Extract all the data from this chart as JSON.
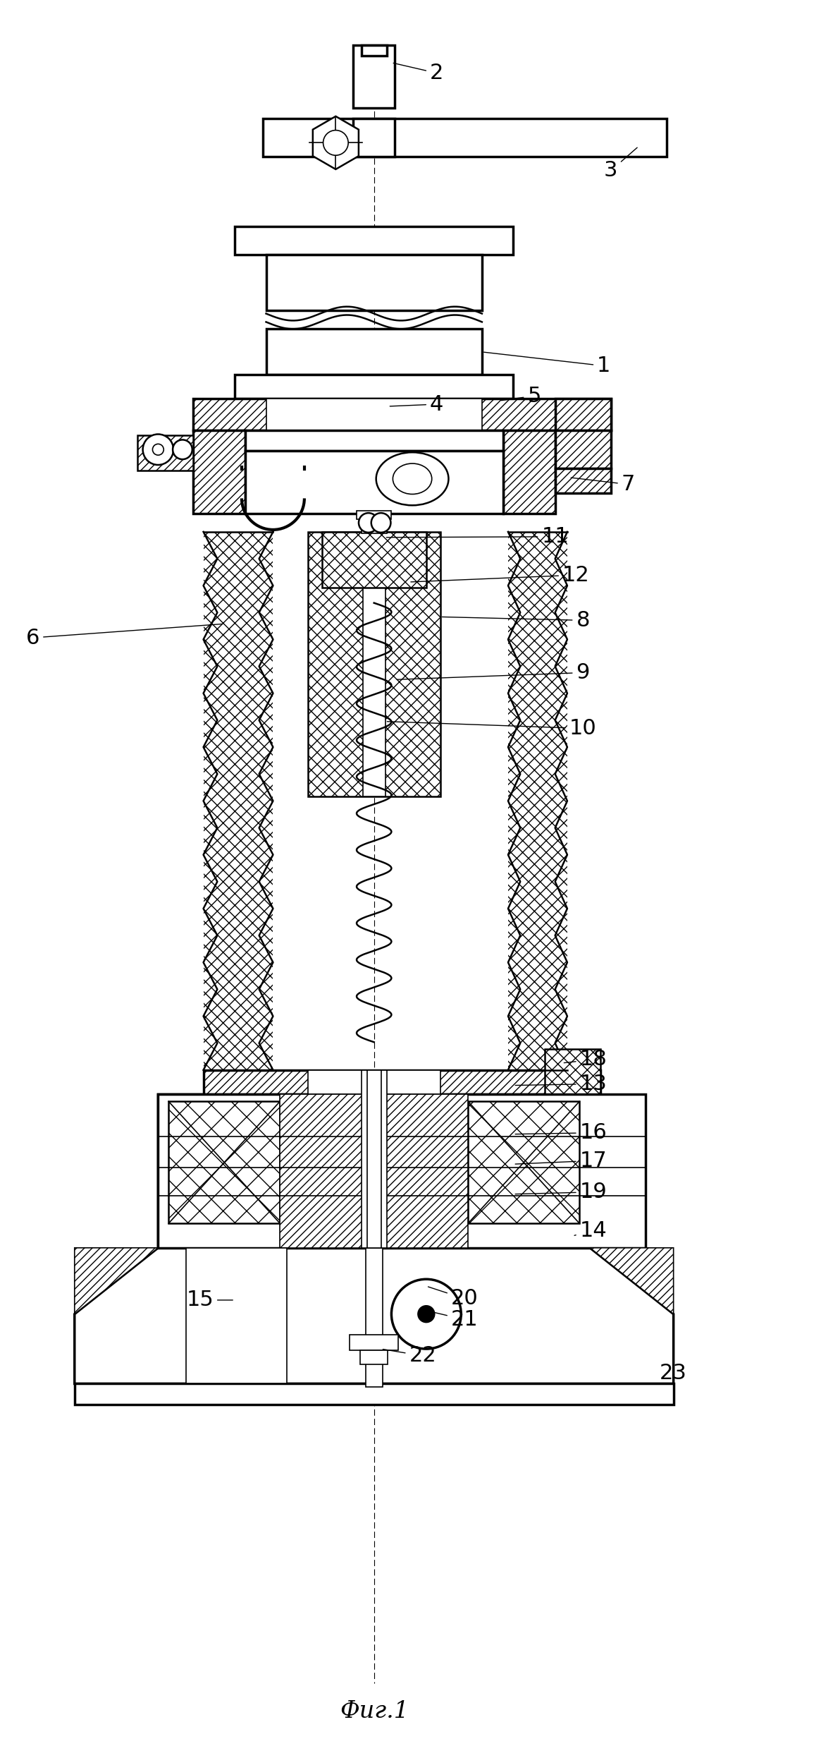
{
  "title": "Фиг.1",
  "bg_color": "#ffffff",
  "line_color": "#000000",
  "figsize": [
    11.82,
    24.92
  ],
  "dpi": 100
}
